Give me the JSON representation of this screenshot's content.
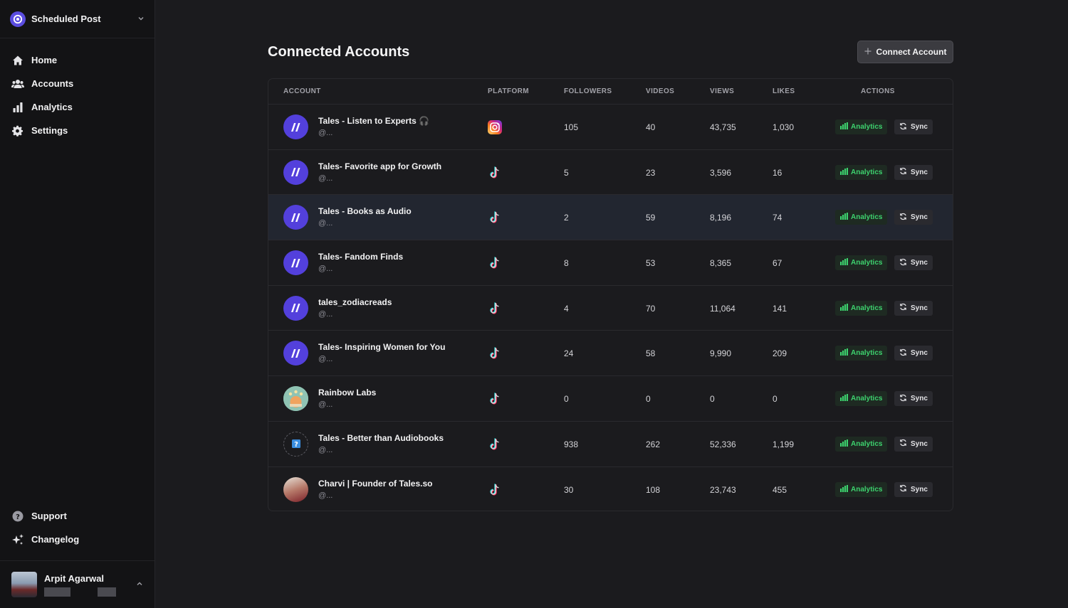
{
  "workspace": {
    "name": "Scheduled Post"
  },
  "nav": {
    "items": [
      {
        "label": "Home",
        "icon": "home-icon"
      },
      {
        "label": "Accounts",
        "icon": "users-icon"
      },
      {
        "label": "Analytics",
        "icon": "bar-chart-icon"
      },
      {
        "label": "Settings",
        "icon": "gear-icon"
      }
    ],
    "bottom": [
      {
        "label": "Support",
        "icon": "help-icon"
      },
      {
        "label": "Changelog",
        "icon": "sparkles-icon"
      }
    ]
  },
  "user": {
    "name": "Arpit Agarwal"
  },
  "page": {
    "title": "Connected Accounts",
    "connect_label": "Connect Account"
  },
  "table": {
    "columns": [
      "ACCOUNT",
      "PLATFORM",
      "FOLLOWERS",
      "VIDEOS",
      "VIEWS",
      "LIKES",
      "ACTIONS"
    ],
    "analytics_label": "Analytics",
    "sync_label": "Sync",
    "rows": [
      {
        "name": "Tales - Listen to Experts 🎧",
        "handle": "@...",
        "platform": "instagram",
        "followers": "105",
        "videos": "40",
        "views": "43,735",
        "likes": "1,030"
      },
      {
        "name": "Tales- Favorite app for Growth",
        "handle": "@...",
        "platform": "tiktok",
        "followers": "5",
        "videos": "23",
        "views": "3,596",
        "likes": "16"
      },
      {
        "name": "Tales - Books as Audio",
        "handle": "@...",
        "platform": "tiktok",
        "followers": "2",
        "videos": "59",
        "views": "8,196",
        "likes": "74"
      },
      {
        "name": "Tales- Fandom Finds",
        "handle": "@...",
        "platform": "tiktok",
        "followers": "8",
        "videos": "53",
        "views": "8,365",
        "likes": "67"
      },
      {
        "name": "tales_zodiacreads",
        "handle": "@...",
        "platform": "tiktok",
        "followers": "4",
        "videos": "70",
        "views": "11,064",
        "likes": "141"
      },
      {
        "name": "Tales- Inspiring Women for You",
        "handle": "@...",
        "platform": "tiktok",
        "followers": "24",
        "videos": "58",
        "views": "9,990",
        "likes": "209"
      },
      {
        "name": "Rainbow Labs",
        "handle": "@...",
        "platform": "tiktok",
        "followers": "0",
        "videos": "0",
        "views": "0",
        "likes": "0"
      },
      {
        "name": "Tales - Better than Audiobooks",
        "handle": "@...",
        "platform": "tiktok",
        "followers": "938",
        "videos": "262",
        "views": "52,336",
        "likes": "1,199"
      },
      {
        "name": "Charvi | Founder of Tales.so",
        "handle": "@...",
        "platform": "tiktok",
        "followers": "30",
        "videos": "108",
        "views": "23,743",
        "likes": "455"
      }
    ]
  },
  "colors": {
    "background": "#1b1b1e",
    "sidebar": "#131315",
    "accent": "#5340dc",
    "analytics_green": "#3dd26e"
  }
}
